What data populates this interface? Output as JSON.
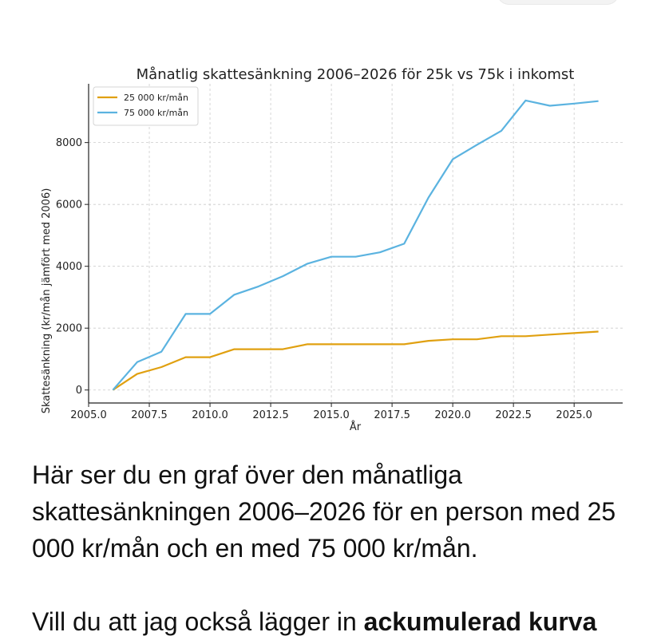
{
  "chart_data": {
    "type": "line",
    "title": "Månatlig skattesänkning 2006–2026 för 25k vs 75k i inkomst",
    "xlabel": "År",
    "ylabel": "Skattesänkning (kr/mån jämfört med 2006)",
    "xlim": [
      2005,
      2027
    ],
    "ylim": [
      -420,
      9900
    ],
    "x_ticks": [
      2005.0,
      2007.5,
      2010.0,
      2012.5,
      2015.0,
      2017.5,
      2020.0,
      2022.5,
      2025.0
    ],
    "x_tick_labels": [
      "2005.0",
      "2007.5",
      "2010.0",
      "2012.5",
      "2015.0",
      "2017.5",
      "2020.0",
      "2022.5",
      "2025.0"
    ],
    "y_ticks": [
      0,
      2000,
      4000,
      6000,
      8000
    ],
    "y_tick_labels": [
      "0",
      "2000",
      "4000",
      "6000",
      "8000"
    ],
    "grid": true,
    "legend_position": "top-left",
    "x": [
      2006,
      2007,
      2008,
      2009,
      2010,
      2011,
      2012,
      2013,
      2014,
      2015,
      2016,
      2017,
      2018,
      2019,
      2020,
      2021,
      2022,
      2023,
      2024,
      2025,
      2026
    ],
    "series": [
      {
        "name": "25 000 kr/mån",
        "color": "#e0a010",
        "values": [
          0,
          520,
          740,
          1060,
          1060,
          1320,
          1320,
          1320,
          1480,
          1480,
          1480,
          1480,
          1480,
          1590,
          1640,
          1640,
          1740,
          1740,
          1790,
          1840,
          1890
        ]
      },
      {
        "name": "75 000 kr/mån",
        "color": "#5bb3e0",
        "values": [
          0,
          900,
          1240,
          2460,
          2460,
          3080,
          3350,
          3680,
          4080,
          4310,
          4310,
          4450,
          4730,
          6220,
          7460,
          7930,
          8380,
          9360,
          9190,
          9260,
          9340
        ]
      }
    ]
  },
  "message": {
    "paragraph1": "Här ser du en graf över den månatliga skattesänkningen 2006–2026 för en person med 25 000 kr/mån och en med 75 000 kr/mån.",
    "paragraph2_start": "Vill du att jag också lägger in ",
    "paragraph2_bold": "ackumulerad kurva"
  }
}
